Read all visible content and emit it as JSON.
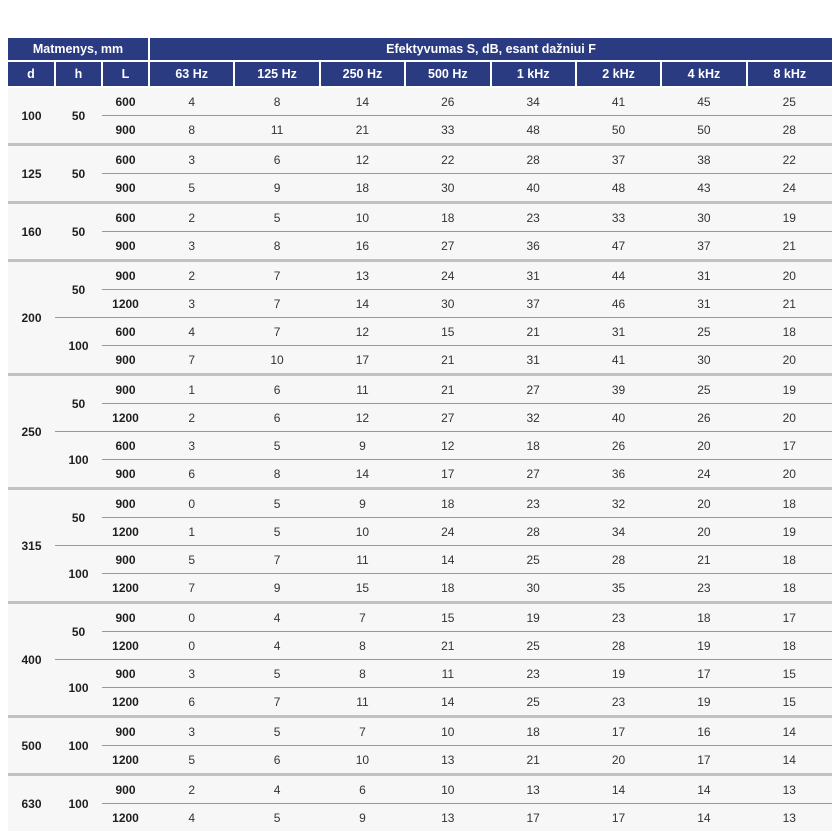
{
  "table": {
    "header": {
      "dimensions_label": "Matmenys, mm",
      "effectiveness_label": "Efektyvumas S, dB, esant dažniui F",
      "dim_columns": [
        "d",
        "h",
        "L"
      ],
      "freq_columns": [
        "63 Hz",
        "125 Hz",
        "250 Hz",
        "500 Hz",
        "1 kHz",
        "2 kHz",
        "4 kHz",
        "8 kHz"
      ]
    },
    "groups": [
      {
        "d": "100",
        "subgroups": [
          {
            "h": "50",
            "rows": [
              {
                "L": "600",
                "values": [
                  4,
                  8,
                  14,
                  26,
                  34,
                  41,
                  45,
                  25
                ]
              },
              {
                "L": "900",
                "values": [
                  8,
                  11,
                  21,
                  33,
                  48,
                  50,
                  50,
                  28
                ]
              }
            ]
          }
        ]
      },
      {
        "d": "125",
        "subgroups": [
          {
            "h": "50",
            "rows": [
              {
                "L": "600",
                "values": [
                  3,
                  6,
                  12,
                  22,
                  28,
                  37,
                  38,
                  22
                ]
              },
              {
                "L": "900",
                "values": [
                  5,
                  9,
                  18,
                  30,
                  40,
                  48,
                  43,
                  24
                ]
              }
            ]
          }
        ]
      },
      {
        "d": "160",
        "subgroups": [
          {
            "h": "50",
            "rows": [
              {
                "L": "600",
                "values": [
                  2,
                  5,
                  10,
                  18,
                  23,
                  33,
                  30,
                  19
                ]
              },
              {
                "L": "900",
                "values": [
                  3,
                  8,
                  16,
                  27,
                  36,
                  47,
                  37,
                  21
                ]
              }
            ]
          }
        ]
      },
      {
        "d": "200",
        "subgroups": [
          {
            "h": "50",
            "rows": [
              {
                "L": "900",
                "values": [
                  2,
                  7,
                  13,
                  24,
                  31,
                  44,
                  31,
                  20
                ]
              },
              {
                "L": "1200",
                "values": [
                  3,
                  7,
                  14,
                  30,
                  37,
                  46,
                  31,
                  21
                ]
              }
            ]
          },
          {
            "h": "100",
            "rows": [
              {
                "L": "600",
                "values": [
                  4,
                  7,
                  12,
                  15,
                  21,
                  31,
                  25,
                  18
                ]
              },
              {
                "L": "900",
                "values": [
                  7,
                  10,
                  17,
                  21,
                  31,
                  41,
                  30,
                  20
                ]
              }
            ]
          }
        ]
      },
      {
        "d": "250",
        "subgroups": [
          {
            "h": "50",
            "rows": [
              {
                "L": "900",
                "values": [
                  1,
                  6,
                  11,
                  21,
                  27,
                  39,
                  25,
                  19
                ]
              },
              {
                "L": "1200",
                "values": [
                  2,
                  6,
                  12,
                  27,
                  32,
                  40,
                  26,
                  20
                ]
              }
            ]
          },
          {
            "h": "100",
            "rows": [
              {
                "L": "600",
                "values": [
                  3,
                  5,
                  9,
                  12,
                  18,
                  26,
                  20,
                  17
                ]
              },
              {
                "L": "900",
                "values": [
                  6,
                  8,
                  14,
                  17,
                  27,
                  36,
                  24,
                  20
                ]
              }
            ]
          }
        ]
      },
      {
        "d": "315",
        "subgroups": [
          {
            "h": "50",
            "rows": [
              {
                "L": "900",
                "values": [
                  0,
                  5,
                  9,
                  18,
                  23,
                  32,
                  20,
                  18
                ]
              },
              {
                "L": "1200",
                "values": [
                  1,
                  5,
                  10,
                  24,
                  28,
                  34,
                  20,
                  19
                ]
              }
            ]
          },
          {
            "h": "100",
            "rows": [
              {
                "L": "900",
                "values": [
                  5,
                  7,
                  11,
                  14,
                  25,
                  28,
                  21,
                  18
                ]
              },
              {
                "L": "1200",
                "values": [
                  7,
                  9,
                  15,
                  18,
                  30,
                  35,
                  23,
                  18
                ]
              }
            ]
          }
        ]
      },
      {
        "d": "400",
        "subgroups": [
          {
            "h": "50",
            "rows": [
              {
                "L": "900",
                "values": [
                  0,
                  4,
                  7,
                  15,
                  19,
                  23,
                  18,
                  17
                ]
              },
              {
                "L": "1200",
                "values": [
                  0,
                  4,
                  8,
                  21,
                  25,
                  28,
                  19,
                  18
                ]
              }
            ]
          },
          {
            "h": "100",
            "rows": [
              {
                "L": "900",
                "values": [
                  3,
                  5,
                  8,
                  11,
                  23,
                  19,
                  17,
                  15
                ]
              },
              {
                "L": "1200",
                "values": [
                  6,
                  7,
                  11,
                  14,
                  25,
                  23,
                  19,
                  15
                ]
              }
            ]
          }
        ]
      },
      {
        "d": "500",
        "subgroups": [
          {
            "h": "100",
            "rows": [
              {
                "L": "900",
                "values": [
                  3,
                  5,
                  7,
                  10,
                  18,
                  17,
                  16,
                  14
                ]
              },
              {
                "L": "1200",
                "values": [
                  5,
                  6,
                  10,
                  13,
                  21,
                  20,
                  17,
                  14
                ]
              }
            ]
          }
        ]
      },
      {
        "d": "630",
        "subgroups": [
          {
            "h": "100",
            "rows": [
              {
                "L": "900",
                "values": [
                  2,
                  4,
                  6,
                  10,
                  13,
                  14,
                  14,
                  13
                ]
              },
              {
                "L": "1200",
                "values": [
                  4,
                  5,
                  9,
                  13,
                  17,
                  17,
                  14,
                  13
                ]
              }
            ]
          }
        ]
      }
    ],
    "colors": {
      "header_bg": "#2b3b82",
      "header_text": "#ffffff",
      "body_bg": "#f7f7f7",
      "body_text": "#333333",
      "row_line": "#999999",
      "group_line": "#c2c2c2",
      "page_bg": "#ffffff"
    }
  }
}
